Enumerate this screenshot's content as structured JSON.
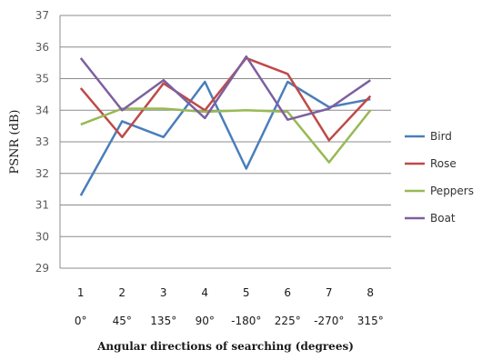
{
  "chart_data": {
    "type": "line",
    "title": "",
    "xlabel": "Angular directions of searching (degrees)",
    "ylabel": "PSNR (dB)",
    "categories": [
      "1",
      "2",
      "3",
      "4",
      "5",
      "6",
      "7",
      "8"
    ],
    "category_sublabels": [
      "0°",
      "45°",
      "135°",
      "90°",
      "-180°",
      "225°",
      "-270°",
      "315°"
    ],
    "ylim": [
      29,
      37
    ],
    "yticks": [
      29,
      30,
      31,
      32,
      33,
      34,
      35,
      36,
      37
    ],
    "grid": true,
    "legend_position": "right",
    "series": [
      {
        "name": "Bird",
        "color": "#4a7ebb",
        "values": [
          31.3,
          33.65,
          33.15,
          34.9,
          32.15,
          34.9,
          34.1,
          34.35
        ]
      },
      {
        "name": "Rose",
        "color": "#be4b48",
        "values": [
          34.7,
          33.15,
          34.85,
          34.0,
          35.65,
          35.15,
          33.05,
          34.45
        ]
      },
      {
        "name": "Peppers",
        "color": "#98b954",
        "values": [
          33.55,
          34.05,
          34.05,
          33.95,
          34.0,
          33.95,
          32.35,
          34.0
        ]
      },
      {
        "name": "Boat",
        "color": "#7d60a0",
        "values": [
          35.65,
          34.0,
          34.95,
          33.75,
          35.7,
          33.7,
          34.05,
          34.95
        ]
      }
    ]
  }
}
